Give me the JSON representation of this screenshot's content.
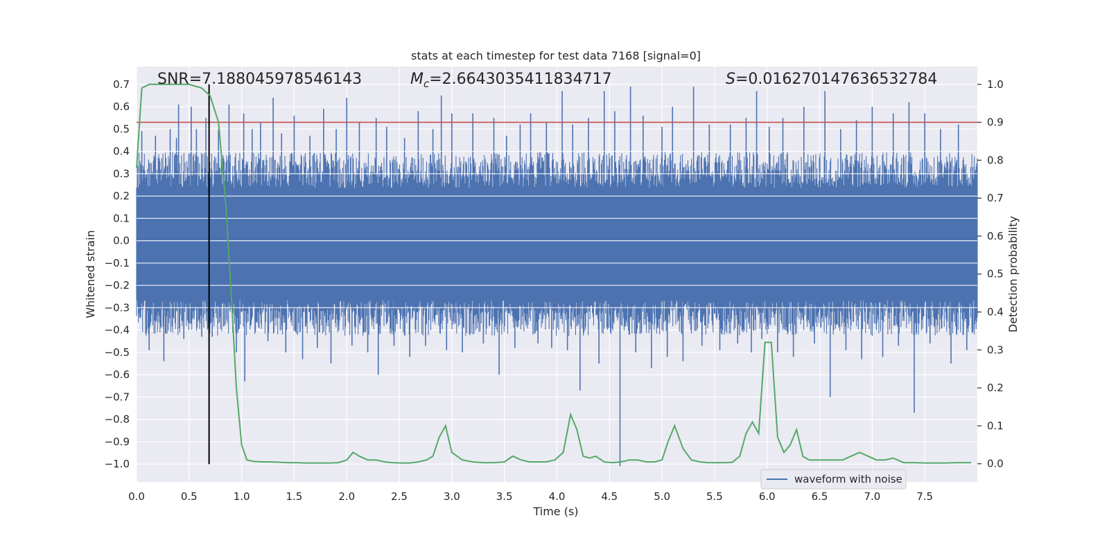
{
  "chart_data": {
    "type": "line",
    "title": "stats at each timestep for test data 7168 [signal=0]",
    "xlabel": "Time (s)",
    "ylabel": "Whitened strain",
    "y2label": "Detection probability",
    "xlim": [
      0.0,
      8.0
    ],
    "ylim": [
      -1.08,
      0.78
    ],
    "y2lim": [
      -0.048,
      1.047
    ],
    "x_ticks": [
      0.0,
      0.5,
      1.0,
      1.5,
      2.0,
      2.5,
      3.0,
      3.5,
      4.0,
      4.5,
      5.0,
      5.5,
      6.0,
      6.5,
      7.0,
      7.5
    ],
    "x_tick_labels": [
      "0.0",
      "0.5",
      "1.0",
      "1.5",
      "2.0",
      "2.5",
      "3.0",
      "3.5",
      "4.0",
      "4.5",
      "5.0",
      "5.5",
      "6.0",
      "6.5",
      "7.0",
      "7.5"
    ],
    "y_ticks": [
      0.7,
      0.6,
      0.5,
      0.4,
      0.3,
      0.2,
      0.1,
      0.0,
      -0.1,
      -0.2,
      -0.3,
      -0.4,
      -0.5,
      -0.6,
      -0.7,
      -0.8,
      -0.9,
      -1.0
    ],
    "y_tick_labels": [
      "0.7",
      "0.6",
      "0.5",
      "0.4",
      "0.3",
      "0.2",
      "0.1",
      "0.0",
      "−0.1",
      "−0.2",
      "−0.3",
      "−0.4",
      "−0.5",
      "−0.6",
      "−0.7",
      "−0.8",
      "−0.9",
      "−1.0"
    ],
    "y2_ticks": [
      1.0,
      0.9,
      0.8,
      0.7,
      0.6,
      0.5,
      0.4,
      0.3,
      0.2,
      0.1,
      0.0
    ],
    "y2_tick_labels": [
      "1.0",
      "0.9",
      "0.8",
      "0.7",
      "0.6",
      "0.5",
      "0.4",
      "0.3",
      "0.2",
      "0.1",
      "0.0"
    ],
    "grid": true,
    "legend": {
      "placement": "lower-right",
      "entries": [
        "waveform with noise"
      ]
    },
    "annotations": {
      "snr": "SNR=7.188045978546143",
      "mc_symbol": "M",
      "mc_sub": "c",
      "mc_value": "=2.6643035411834717",
      "s_symbol": "S",
      "s_value": "=0.016270147636532784"
    },
    "series": [
      {
        "name": "waveform with noise",
        "color": "#4c72b0",
        "band": {
          "x_start": 0.0,
          "x_end": 8.0,
          "typical_upper": 0.3,
          "typical_lower": -0.33
        },
        "spikes": [
          [
            0.05,
            0.49
          ],
          [
            0.12,
            -0.49
          ],
          [
            0.18,
            0.47
          ],
          [
            0.26,
            -0.54
          ],
          [
            0.32,
            0.5
          ],
          [
            0.38,
            0.46
          ],
          [
            0.4,
            0.61
          ],
          [
            0.45,
            -0.44
          ],
          [
            0.52,
            0.6
          ],
          [
            0.57,
            0.5
          ],
          [
            0.62,
            -0.43
          ],
          [
            0.66,
            0.55
          ],
          [
            0.72,
            -0.43
          ],
          [
            0.78,
            0.5
          ],
          [
            0.88,
            0.61
          ],
          [
            0.95,
            -0.5
          ],
          [
            1.02,
            0.57
          ],
          [
            1.03,
            -0.63
          ],
          [
            1.1,
            0.5
          ],
          [
            1.18,
            0.53
          ],
          [
            1.25,
            -0.45
          ],
          [
            1.3,
            0.64
          ],
          [
            1.38,
            0.48
          ],
          [
            1.42,
            -0.5
          ],
          [
            1.5,
            0.56
          ],
          [
            1.58,
            -0.53
          ],
          [
            1.65,
            0.47
          ],
          [
            1.72,
            -0.48
          ],
          [
            1.78,
            0.59
          ],
          [
            1.85,
            -0.55
          ],
          [
            1.9,
            0.5
          ],
          [
            2.0,
            0.64
          ],
          [
            2.05,
            -0.47
          ],
          [
            2.12,
            0.53
          ],
          [
            2.2,
            -0.5
          ],
          [
            2.28,
            0.55
          ],
          [
            2.3,
            -0.6
          ],
          [
            2.38,
            0.51
          ],
          [
            2.45,
            -0.47
          ],
          [
            2.55,
            0.46
          ],
          [
            2.6,
            -0.52
          ],
          [
            2.68,
            0.58
          ],
          [
            2.75,
            -0.47
          ],
          [
            2.82,
            0.5
          ],
          [
            2.9,
            0.65
          ],
          [
            2.95,
            -0.49
          ],
          [
            3.0,
            0.57
          ],
          [
            3.1,
            -0.5
          ],
          [
            3.2,
            0.57
          ],
          [
            3.3,
            -0.46
          ],
          [
            3.4,
            0.55
          ],
          [
            3.45,
            -0.6
          ],
          [
            3.52,
            0.47
          ],
          [
            3.6,
            -0.48
          ],
          [
            3.65,
            0.52
          ],
          [
            3.75,
            0.57
          ],
          [
            3.82,
            -0.46
          ],
          [
            3.9,
            0.53
          ],
          [
            3.95,
            -0.48
          ],
          [
            4.05,
            0.67
          ],
          [
            4.1,
            -0.49
          ],
          [
            4.15,
            0.52
          ],
          [
            4.22,
            -0.67
          ],
          [
            4.3,
            0.55
          ],
          [
            4.4,
            -0.55
          ],
          [
            4.45,
            0.67
          ],
          [
            4.55,
            0.58
          ],
          [
            4.6,
            -1.01
          ],
          [
            4.7,
            0.69
          ],
          [
            4.75,
            -0.5
          ],
          [
            4.82,
            0.56
          ],
          [
            4.9,
            -0.57
          ],
          [
            5.0,
            0.51
          ],
          [
            5.05,
            -0.52
          ],
          [
            5.1,
            0.6
          ],
          [
            5.2,
            -0.54
          ],
          [
            5.3,
            0.69
          ],
          [
            5.38,
            -0.47
          ],
          [
            5.45,
            0.52
          ],
          [
            5.55,
            -0.49
          ],
          [
            5.65,
            0.52
          ],
          [
            5.72,
            -0.46
          ],
          [
            5.8,
            0.55
          ],
          [
            5.85,
            -0.5
          ],
          [
            5.9,
            0.67
          ],
          [
            5.95,
            -0.44
          ],
          [
            6.02,
            0.51
          ],
          [
            6.1,
            -0.5
          ],
          [
            6.15,
            0.55
          ],
          [
            6.25,
            -0.52
          ],
          [
            6.35,
            0.6
          ],
          [
            6.45,
            -0.46
          ],
          [
            6.55,
            0.67
          ],
          [
            6.6,
            -0.7
          ],
          [
            6.7,
            0.5
          ],
          [
            6.75,
            -0.49
          ],
          [
            6.85,
            0.54
          ],
          [
            6.9,
            -0.53
          ],
          [
            7.0,
            0.6
          ],
          [
            7.1,
            -0.52
          ],
          [
            7.2,
            0.57
          ],
          [
            7.25,
            -0.47
          ],
          [
            7.35,
            0.62
          ],
          [
            7.4,
            -0.77
          ],
          [
            7.5,
            0.57
          ],
          [
            7.55,
            -0.46
          ],
          [
            7.65,
            0.5
          ],
          [
            7.75,
            -0.55
          ],
          [
            7.82,
            0.52
          ],
          [
            7.9,
            -0.49
          ]
        ]
      },
      {
        "name": "detection probability",
        "axis": "right",
        "color": "#55a868",
        "x": [
          0.0,
          0.05,
          0.12,
          0.2,
          0.3,
          0.4,
          0.5,
          0.62,
          0.7,
          0.78,
          0.85,
          0.9,
          0.95,
          1.0,
          1.05,
          1.12,
          1.2,
          1.28,
          1.36,
          1.44,
          1.52,
          1.6,
          1.68,
          1.76,
          1.84,
          1.92,
          2.0,
          2.06,
          2.12,
          2.2,
          2.28,
          2.36,
          2.44,
          2.52,
          2.6,
          2.68,
          2.76,
          2.82,
          2.88,
          2.94,
          3.0,
          3.1,
          3.2,
          3.3,
          3.4,
          3.5,
          3.58,
          3.66,
          3.74,
          3.82,
          3.9,
          3.98,
          4.06,
          4.13,
          4.19,
          4.25,
          4.31,
          4.37,
          4.45,
          4.53,
          4.61,
          4.69,
          4.77,
          4.85,
          4.93,
          5.0,
          5.06,
          5.12,
          5.2,
          5.28,
          5.36,
          5.44,
          5.52,
          5.6,
          5.67,
          5.74,
          5.8,
          5.86,
          5.92,
          5.98,
          6.04,
          6.1,
          6.16,
          6.22,
          6.28,
          6.34,
          6.4,
          6.48,
          6.56,
          6.64,
          6.72,
          6.8,
          6.88,
          6.96,
          7.04,
          7.12,
          7.2,
          7.3,
          7.4,
          7.5,
          7.6,
          7.7,
          7.8,
          7.94
        ],
        "y": [
          0.78,
          0.99,
          1.0,
          1.0,
          1.0,
          1.0,
          1.0,
          0.99,
          0.97,
          0.9,
          0.68,
          0.45,
          0.2,
          0.05,
          0.01,
          0.006,
          0.005,
          0.005,
          0.004,
          0.003,
          0.003,
          0.002,
          0.002,
          0.002,
          0.002,
          0.003,
          0.01,
          0.03,
          0.02,
          0.01,
          0.01,
          0.005,
          0.003,
          0.002,
          0.002,
          0.005,
          0.01,
          0.02,
          0.07,
          0.1,
          0.03,
          0.01,
          0.005,
          0.003,
          0.003,
          0.005,
          0.02,
          0.01,
          0.005,
          0.005,
          0.005,
          0.01,
          0.03,
          0.13,
          0.09,
          0.02,
          0.015,
          0.02,
          0.005,
          0.003,
          0.005,
          0.01,
          0.01,
          0.005,
          0.005,
          0.01,
          0.06,
          0.1,
          0.04,
          0.01,
          0.005,
          0.003,
          0.003,
          0.003,
          0.004,
          0.02,
          0.08,
          0.11,
          0.08,
          0.32,
          0.32,
          0.07,
          0.03,
          0.05,
          0.09,
          0.02,
          0.01,
          0.01,
          0.01,
          0.01,
          0.01,
          0.02,
          0.03,
          0.02,
          0.01,
          0.01,
          0.015,
          0.003,
          0.003,
          0.002,
          0.002,
          0.002,
          0.003,
          0.003
        ]
      }
    ],
    "reference_lines": {
      "threshold": {
        "value": 0.9,
        "axis": "right",
        "color": "#c44e52"
      },
      "marker": {
        "x": 0.69,
        "from": -1.0,
        "to": 0.7,
        "color": "#000000"
      }
    },
    "colors": {
      "background": "#eaeaf2",
      "grid": "#ffffff",
      "text": "#262626"
    }
  }
}
